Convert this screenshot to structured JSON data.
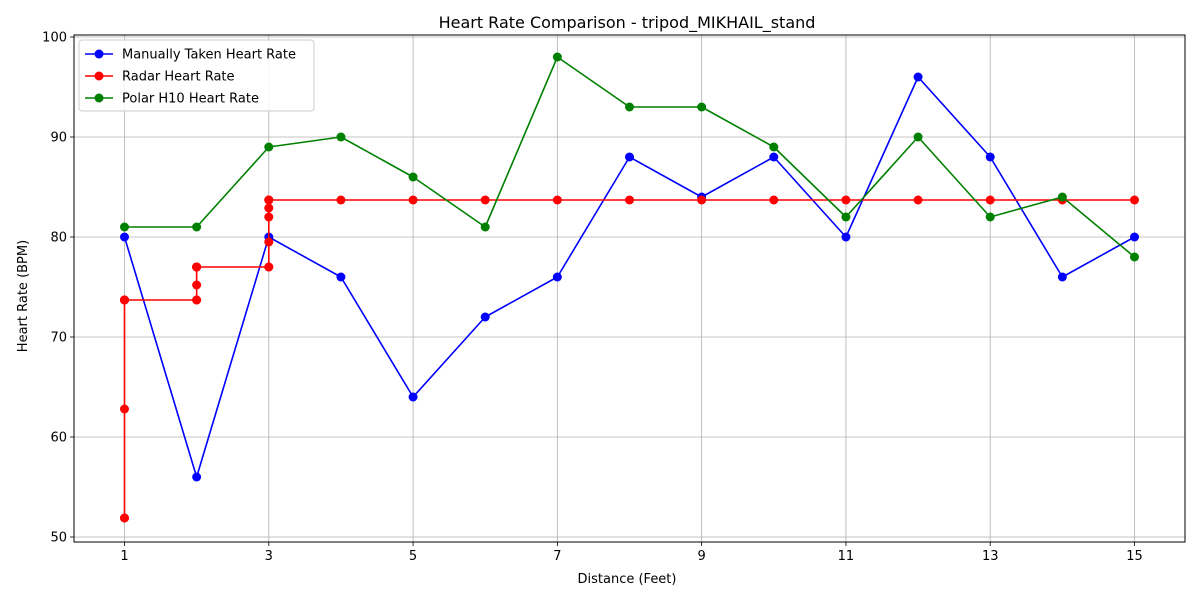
{
  "chart_data": {
    "type": "line",
    "title": "Heart Rate Comparison - tripod_MIKHAIL_stand",
    "xlabel": "Distance (Feet)",
    "ylabel": "Heart Rate (BPM)",
    "xlim": [
      0.3,
      15.7
    ],
    "ylim": [
      49.5,
      100.2
    ],
    "xticks": [
      1,
      3,
      5,
      7,
      9,
      11,
      13,
      15
    ],
    "yticks": [
      50,
      60,
      70,
      80,
      90,
      100
    ],
    "grid": true,
    "legend_position": "upper-left",
    "series": [
      {
        "name": "Manually Taken Heart Rate",
        "color": "#0000ff",
        "x": [
          1,
          2,
          3,
          4,
          5,
          6,
          7,
          8,
          9,
          10,
          11,
          12,
          13,
          14,
          15
        ],
        "y": [
          80,
          56,
          80,
          76,
          64,
          72,
          76,
          88,
          84,
          88,
          80,
          96,
          88,
          76,
          80
        ]
      },
      {
        "name": "Radar Heart Rate",
        "color": "#ff0000",
        "x": [
          1,
          1,
          1,
          1,
          1,
          1,
          1,
          2,
          2,
          2,
          2,
          2,
          2,
          2,
          3,
          3,
          3,
          3,
          3,
          3,
          3,
          3,
          4,
          5,
          6,
          7,
          8,
          9,
          10,
          11,
          12,
          13,
          14,
          15
        ],
        "y": [
          51.9,
          51.9,
          62.8,
          73.7,
          73.7,
          73.7,
          73.7,
          73.7,
          73.7,
          75.2,
          77.0,
          77.0,
          77.0,
          77.0,
          77.0,
          77.0,
          79.5,
          82.0,
          82.9,
          83.7,
          83.7,
          83.7,
          83.7,
          83.7,
          83.7,
          83.7,
          83.7,
          83.7,
          83.7,
          83.7,
          83.7,
          83.7,
          83.7,
          83.7
        ]
      },
      {
        "name": "Polar H10 Heart Rate",
        "color": "#008000",
        "x": [
          1,
          2,
          3,
          4,
          5,
          6,
          7,
          8,
          9,
          10,
          11,
          12,
          13,
          14,
          15
        ],
        "y": [
          81,
          81,
          89,
          90,
          86,
          81,
          98,
          93,
          93,
          89,
          82,
          90,
          82,
          84,
          78
        ]
      }
    ]
  }
}
